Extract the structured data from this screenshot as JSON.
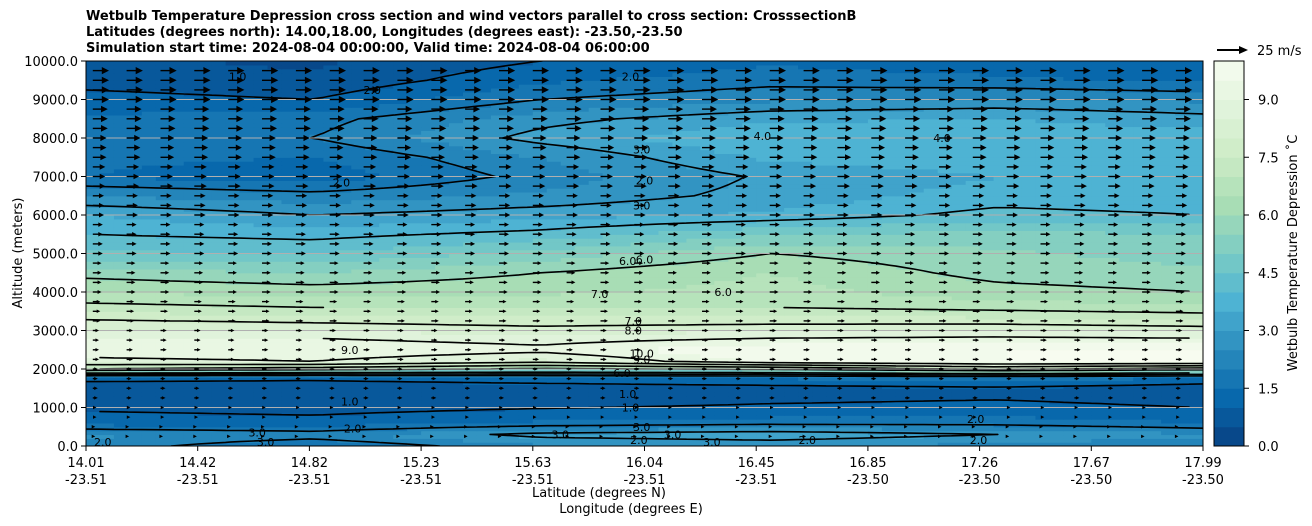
{
  "chart_data": {
    "type": "heatmap",
    "title_lines": [
      "Wetbulb Temperature Depression cross section and wind vectors parallel to cross section: CrosssectionB",
      "Latitudes (degrees north): 14.00,18.00, Longitudes (degrees east): -23.50,-23.50",
      "Simulation start time: 2024-08-04 00:00:00, Valid time: 2024-08-04 06:00:00"
    ],
    "xlabel_lat": "Latitude (degrees N)",
    "xlabel_lon": "Longitude (degrees E)",
    "ylabel": "Altitude (meters)",
    "colorbar_label": "Wetbulb Temperature Depression ˚C",
    "quiver_key_label": "25 m/s",
    "ylim": [
      0,
      10000
    ],
    "clim": [
      0,
      10
    ],
    "y_ticks": [
      "0.0",
      "1000.0",
      "2000.0",
      "3000.0",
      "4000.0",
      "5000.0",
      "6000.0",
      "7000.0",
      "8000.0",
      "9000.0",
      "10000.0"
    ],
    "y_tick_values": [
      0,
      1000,
      2000,
      3000,
      4000,
      5000,
      6000,
      7000,
      8000,
      9000,
      10000
    ],
    "x_tick_lat": [
      "14.01",
      "14.42",
      "14.82",
      "15.23",
      "15.63",
      "16.04",
      "16.45",
      "16.85",
      "17.26",
      "17.67",
      "17.99"
    ],
    "x_tick_lon": [
      "-23.51",
      "-23.51",
      "-23.51",
      "-23.51",
      "-23.51",
      "-23.51",
      "-23.51",
      "-23.50",
      "-23.50",
      "-23.50",
      "-23.50"
    ],
    "colorbar_ticks": [
      "0.0",
      "1.5",
      "3.0",
      "4.5",
      "6.0",
      "7.5",
      "9.0"
    ],
    "colorbar_tick_values": [
      0,
      1.5,
      3.0,
      4.5,
      6.0,
      7.5,
      9.0
    ],
    "profile_altitudes": [
      0,
      300,
      600,
      900,
      1200,
      1500,
      1800,
      2000,
      2200,
      2500,
      2800,
      3200,
      3600,
      4000,
      4500,
      5000,
      5500,
      6000,
      6500,
      7000,
      7500,
      8000,
      8500,
      9000,
      9500,
      10000
    ],
    "profiles": [
      {
        "lat": 14.01,
        "values": [
          2.3,
          2.6,
          1.3,
          1.0,
          0.7,
          0.6,
          1.3,
          7.0,
          8.8,
          9.4,
          9.0,
          8.2,
          7.2,
          6.5,
          5.8,
          4.6,
          4.0,
          3.5,
          2.5,
          1.5,
          1.6,
          1.8,
          1.6,
          1.2,
          0.8,
          0.6
        ]
      },
      {
        "lat": 14.82,
        "values": [
          1.5,
          2.3,
          1.2,
          0.9,
          0.6,
          0.6,
          1.2,
          6.5,
          9.0,
          9.5,
          9.0,
          8.0,
          7.0,
          6.3,
          5.5,
          4.5,
          3.8,
          3.0,
          2.2,
          1.2,
          1.5,
          2.0,
          1.8,
          1.0,
          0.6,
          0.4
        ]
      },
      {
        "lat": 15.63,
        "values": [
          2.4,
          3.2,
          1.6,
          1.1,
          0.7,
          0.7,
          1.4,
          5.8,
          8.3,
          9.2,
          8.7,
          7.8,
          7.0,
          6.4,
          6.0,
          5.2,
          4.2,
          3.3,
          2.6,
          2.2,
          2.5,
          3.2,
          2.8,
          2.0,
          1.4,
          1.0
        ]
      },
      {
        "lat": 16.45,
        "values": [
          2.6,
          3.4,
          1.8,
          1.2,
          0.9,
          0.8,
          1.6,
          6.2,
          9.6,
          10.0,
          9.0,
          7.9,
          7.0,
          6.7,
          6.5,
          6.0,
          5.0,
          3.6,
          3.2,
          3.1,
          3.6,
          4.0,
          3.4,
          2.4,
          1.8,
          1.4
        ]
      },
      {
        "lat": 17.26,
        "values": [
          2.3,
          3.0,
          1.8,
          1.3,
          1.0,
          0.9,
          1.9,
          7.2,
          10.0,
          10.0,
          9.1,
          7.9,
          6.8,
          6.2,
          5.8,
          5.6,
          5.2,
          4.2,
          3.7,
          3.5,
          3.8,
          4.0,
          3.5,
          2.6,
          1.6,
          1.2
        ]
      },
      {
        "lat": 17.99,
        "values": [
          2.0,
          2.6,
          1.5,
          1.1,
          0.8,
          0.7,
          1.5,
          6.5,
          10.0,
          10.0,
          9.0,
          7.7,
          6.6,
          6.0,
          5.6,
          5.3,
          5.0,
          4.0,
          3.6,
          3.5,
          3.7,
          3.8,
          3.2,
          2.4,
          1.4,
          1.0
        ]
      }
    ],
    "contour_levels": [
      1.0,
      2.0,
      3.0,
      4.0,
      6.0,
      7.0,
      8.0,
      9.0,
      10.0
    ],
    "contour_labels": [
      {
        "text": "1.0",
        "lat": 14.55,
        "alt": 9600
      },
      {
        "text": "2.0",
        "lat": 15.03,
        "alt": 9250
      },
      {
        "text": "2.0",
        "lat": 15.95,
        "alt": 9600
      },
      {
        "text": "4.0",
        "lat": 16.42,
        "alt": 8050
      },
      {
        "text": "4.0",
        "lat": 17.06,
        "alt": 8000
      },
      {
        "text": "3.0",
        "lat": 15.99,
        "alt": 7700
      },
      {
        "text": "2.0",
        "lat": 16.0,
        "alt": 6900
      },
      {
        "text": "2.0",
        "lat": 14.92,
        "alt": 6850
      },
      {
        "text": "3.0",
        "lat": 15.99,
        "alt": 6250
      },
      {
        "text": "6.0",
        "lat": 15.94,
        "alt": 4800
      },
      {
        "text": "6.0",
        "lat": 16.0,
        "alt": 4850
      },
      {
        "text": "7.0",
        "lat": 15.84,
        "alt": 3950
      },
      {
        "text": "6.0",
        "lat": 16.28,
        "alt": 4000
      },
      {
        "text": "7.0",
        "lat": 15.96,
        "alt": 3250
      },
      {
        "text": "8.0",
        "lat": 15.96,
        "alt": 3000
      },
      {
        "text": "9.0",
        "lat": 14.95,
        "alt": 2500
      },
      {
        "text": "10.0",
        "lat": 15.99,
        "alt": 2400
      },
      {
        "text": "9.0",
        "lat": 15.99,
        "alt": 2250
      },
      {
        "text": "6.0",
        "lat": 15.92,
        "alt": 1900
      },
      {
        "text": "1.0",
        "lat": 15.94,
        "alt": 1350
      },
      {
        "text": "1.0",
        "lat": 15.95,
        "alt": 1000
      },
      {
        "text": "1.0",
        "lat": 14.95,
        "alt": 1150
      },
      {
        "text": "2.0",
        "lat": 14.96,
        "alt": 450
      },
      {
        "text": "3.0",
        "lat": 14.62,
        "alt": 350
      },
      {
        "text": "3.0",
        "lat": 14.65,
        "alt": 100
      },
      {
        "text": "3.0",
        "lat": 15.7,
        "alt": 300
      },
      {
        "text": "3.0",
        "lat": 15.99,
        "alt": 500
      },
      {
        "text": "3.0",
        "lat": 16.1,
        "alt": 300
      },
      {
        "text": "3.0",
        "lat": 16.24,
        "alt": 100
      },
      {
        "text": "2.0",
        "lat": 15.98,
        "alt": 150
      },
      {
        "text": "2.0",
        "lat": 16.58,
        "alt": 150
      },
      {
        "text": "2.0",
        "lat": 17.18,
        "alt": 700
      },
      {
        "text": "2.0",
        "lat": 17.19,
        "alt": 150
      },
      {
        "text": "2.0",
        "lat": 14.07,
        "alt": 100
      }
    ],
    "wind_speed_by_altitude": [
      {
        "alt": 250,
        "speed": 2
      },
      {
        "alt": 500,
        "speed": 2
      },
      {
        "alt": 750,
        "speed": 3
      },
      {
        "alt": 1000,
        "speed": 3
      },
      {
        "alt": 1250,
        "speed": 4
      },
      {
        "alt": 1500,
        "speed": 4
      },
      {
        "alt": 1750,
        "speed": 4
      },
      {
        "alt": 2000,
        "speed": 4
      },
      {
        "alt": 2250,
        "speed": 5
      },
      {
        "alt": 2500,
        "speed": 5
      },
      {
        "alt": 2750,
        "speed": 5
      },
      {
        "alt": 3000,
        "speed": 5
      },
      {
        "alt": 3250,
        "speed": 6
      },
      {
        "alt": 3500,
        "speed": 6
      },
      {
        "alt": 3750,
        "speed": 6
      },
      {
        "alt": 4000,
        "speed": 7
      },
      {
        "alt": 4250,
        "speed": 7
      },
      {
        "alt": 4500,
        "speed": 7
      },
      {
        "alt": 4750,
        "speed": 7
      },
      {
        "alt": 5000,
        "speed": 8
      },
      {
        "alt": 5250,
        "speed": 8
      },
      {
        "alt": 5500,
        "speed": 8
      },
      {
        "alt": 5750,
        "speed": 8
      },
      {
        "alt": 6000,
        "speed": 9
      },
      {
        "alt": 6250,
        "speed": 9
      },
      {
        "alt": 6500,
        "speed": 9
      },
      {
        "alt": 6750,
        "speed": 10
      },
      {
        "alt": 7000,
        "speed": 10
      },
      {
        "alt": 7250,
        "speed": 10
      },
      {
        "alt": 7500,
        "speed": 11
      },
      {
        "alt": 7750,
        "speed": 11
      },
      {
        "alt": 8000,
        "speed": 11
      },
      {
        "alt": 8250,
        "speed": 12
      },
      {
        "alt": 8500,
        "speed": 12
      },
      {
        "alt": 8750,
        "speed": 12
      },
      {
        "alt": 9000,
        "speed": 13
      },
      {
        "alt": 9250,
        "speed": 13
      },
      {
        "alt": 9500,
        "speed": 13
      },
      {
        "alt": 9750,
        "speed": 13
      }
    ],
    "grid": "horizontal",
    "colormap": "GnBu_r"
  }
}
